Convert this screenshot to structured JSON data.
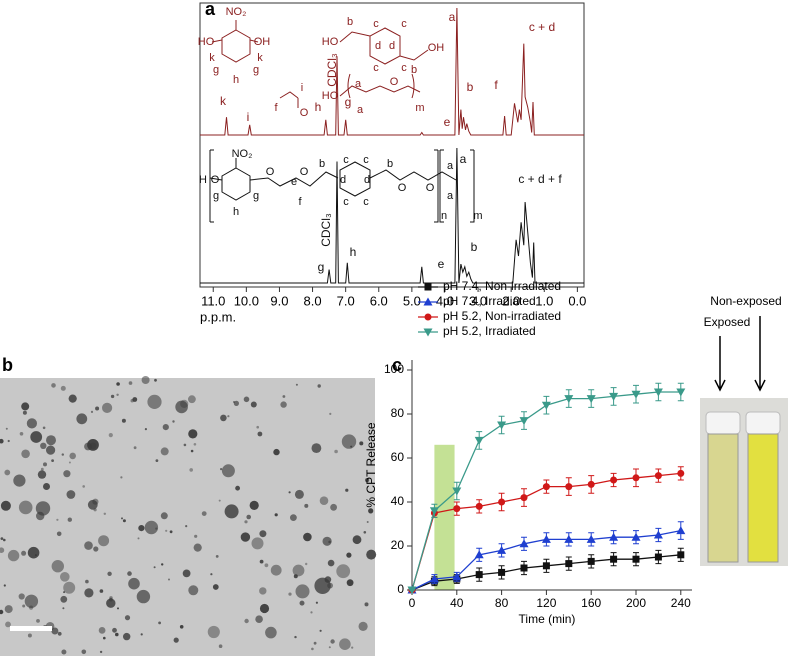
{
  "panel_labels": [
    "a",
    "b",
    "c"
  ],
  "chart_data": [
    {
      "type": "spectrum",
      "xlim": [
        11.4,
        -0.2
      ],
      "xticks": [
        {
          "value": 11,
          "label": "11.0"
        },
        {
          "value": 10,
          "label": "10.0"
        },
        {
          "value": 9,
          "label": "9.0"
        },
        {
          "value": 8,
          "label": "8.0"
        },
        {
          "value": 7,
          "label": "7.0"
        },
        {
          "value": 6,
          "label": "6.0"
        },
        {
          "value": 5,
          "label": "5.0"
        },
        {
          "value": 4,
          "label": "4.0"
        },
        {
          "value": 3,
          "label": "3.0"
        },
        {
          "value": 2,
          "label": "2.0"
        },
        {
          "value": 1,
          "label": "1.0"
        },
        {
          "value": 0,
          "label": "0.0"
        }
      ],
      "xlabel": "p.p.m.",
      "ylim": [
        0,
        100
      ],
      "series": [
        {
          "color": "#8b2020",
          "x": [
            11.4,
            10.65,
            10.6,
            10.55,
            9.95,
            9.9,
            9.85,
            7.65,
            7.6,
            7.55,
            7.3,
            7.26,
            7.22,
            7.05,
            7.0,
            6.95,
            4.75,
            4.7,
            4.65,
            3.7,
            3.64,
            3.58,
            3.52,
            3.48,
            3.44,
            3.38,
            3.34,
            3.28,
            3.22,
            2.25,
            2.2,
            2.15,
            2.0,
            1.9,
            1.8,
            1.75,
            1.7,
            1.62,
            1.58,
            1.5,
            1.42,
            1.38,
            1.34,
            1.3,
            -0.2
          ],
          "values": [
            0,
            0,
            14,
            0,
            0,
            8,
            0,
            0,
            12,
            0,
            0,
            62,
            0,
            0,
            12,
            0,
            0,
            2,
            0,
            0,
            100,
            0,
            20,
            5,
            14,
            4,
            9,
            3,
            0,
            0,
            15,
            0,
            0,
            25,
            10,
            20,
            12,
            72,
            30,
            22,
            10,
            2,
            26,
            0,
            0
          ],
          "peak_labels": [
            "k",
            "i",
            "h",
            "CDCl₃",
            "g",
            "e",
            "a",
            "b",
            "f",
            "c + d"
          ]
        },
        {
          "color": "#111111",
          "x": [
            11.4,
            7.55,
            7.5,
            7.45,
            7.3,
            7.26,
            7.22,
            7.0,
            6.95,
            6.9,
            4.75,
            4.7,
            4.65,
            3.7,
            3.64,
            3.58,
            3.52,
            3.46,
            3.4,
            3.34,
            3.28,
            3.22,
            3.16,
            1.95,
            1.85,
            1.78,
            1.7,
            1.62,
            1.58,
            1.5,
            1.42,
            1.36,
            1.32,
            1.28,
            -0.2
          ],
          "values": [
            0,
            0,
            10,
            0,
            0,
            90,
            0,
            0,
            15,
            0,
            0,
            12,
            0,
            0,
            100,
            0,
            14,
            8,
            12,
            5,
            8,
            3,
            0,
            0,
            32,
            20,
            45,
            28,
            60,
            38,
            15,
            4,
            30,
            0,
            0
          ],
          "peak_labels": [
            "g",
            "CDCl₃",
            "h",
            "e",
            "a",
            "b",
            "c + d + f"
          ]
        }
      ],
      "structure_top": [
        "NO₂",
        "HO",
        "OH",
        "k",
        "k",
        "g",
        "g",
        "h",
        "f",
        "i",
        "O",
        "b",
        "c",
        "c",
        "HO",
        "d",
        "d",
        "OH",
        "c",
        "c",
        "b",
        "HO",
        "a",
        "O",
        "a",
        "m"
      ],
      "structure_bottom": [
        "H",
        "O",
        "NO₂",
        "g",
        "h",
        "g",
        "O",
        "e",
        "O",
        "f",
        "b",
        "c",
        "c",
        "d",
        "d",
        "c",
        "c",
        "b",
        "O",
        "O",
        "a",
        "a",
        "n",
        "m"
      ]
    },
    {
      "type": "line",
      "xlabel": "Time (min)",
      "ylabel": "% CPT Release",
      "xlim": [
        0,
        250
      ],
      "xticks": [
        0,
        40,
        80,
        120,
        160,
        200,
        240
      ],
      "ylim": [
        0,
        100
      ],
      "yticks": [
        0,
        20,
        40,
        60,
        80,
        100
      ],
      "x": [
        0,
        20,
        40,
        60,
        80,
        100,
        120,
        140,
        160,
        180,
        200,
        220,
        240
      ],
      "highlight": {
        "x": [
          20,
          38
        ],
        "y": [
          0,
          66
        ],
        "color": "#b5d97a"
      },
      "series": [
        {
          "name": "pH 7.4, Non-irradiated",
          "color": "#111111",
          "marker": "square",
          "values": [
            0,
            4,
            5,
            7,
            8,
            10,
            11,
            12,
            13,
            14,
            14,
            15,
            16
          ],
          "errors": [
            0,
            2,
            2,
            3,
            3,
            3,
            3,
            3,
            3,
            3,
            3,
            3,
            3
          ]
        },
        {
          "name": "pH 7.4, Irradiated",
          "color": "#1f3fd0",
          "marker": "triangle",
          "values": [
            0,
            5,
            6,
            16,
            18,
            21,
            23,
            23,
            23,
            24,
            24,
            25,
            27
          ],
          "errors": [
            0,
            2,
            2,
            3,
            3,
            3,
            3,
            3,
            3,
            3,
            3,
            3,
            4
          ]
        },
        {
          "name": "pH 5.2, Non-irradiated",
          "color": "#d01818",
          "marker": "circle",
          "values": [
            0,
            35,
            37,
            38,
            40,
            42,
            47,
            47,
            48,
            50,
            51,
            52,
            53
          ],
          "errors": [
            0,
            2,
            3,
            3,
            4,
            4,
            3,
            4,
            4,
            3,
            4,
            3,
            3
          ]
        },
        {
          "name": "pH 5.2, Irradiated",
          "color": "#3a9a8a",
          "marker": "triangle-down",
          "values": [
            0,
            36,
            45,
            68,
            75,
            77,
            84,
            87,
            87,
            88,
            89,
            90,
            90
          ],
          "errors": [
            0,
            3,
            4,
            4,
            4,
            4,
            4,
            4,
            4,
            4,
            4,
            4,
            4
          ]
        }
      ]
    }
  ],
  "photo": {
    "labels": [
      "Exposed",
      "Non-exposed"
    ]
  }
}
